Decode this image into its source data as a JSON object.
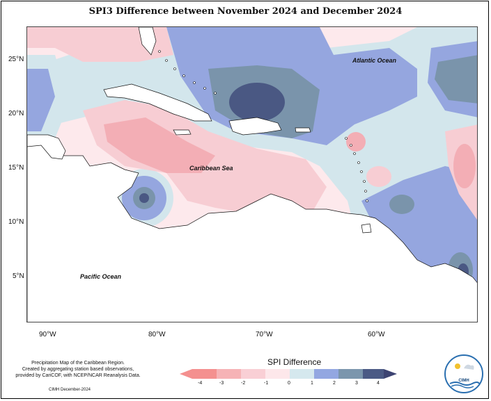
{
  "title": "SPI3 Difference between November 2024 and December 2024",
  "lat_labels": [
    "25°N",
    "20°N",
    "15°N",
    "10°N",
    "5°N"
  ],
  "lon_labels": [
    "90°W",
    "80°W",
    "70°W",
    "60°W"
  ],
  "ocean_labels": {
    "atlantic": "Atlantic Ocean",
    "caribbean": "Caribbean Sea",
    "pacific": "Pacific Ocean"
  },
  "credit_lines": [
    "Precipitation Map of the Caribbean Region.",
    "Created by aggregating station based observations,",
    "provided by CariCOF, with NCEP/NCAR Reanalysis Data."
  ],
  "credit_date": "CIMH December-2024",
  "legend": {
    "title": "SPI Difference",
    "ticks": [
      "-4",
      "-3",
      "-2",
      "-1",
      "0",
      "1",
      "2",
      "3",
      "4"
    ],
    "colors": [
      "#f4908f",
      "#f6b3b6",
      "#f9cfd5",
      "#fde7ea",
      "#d5e8ee",
      "#93a7e1",
      "#7b96ad",
      "#4b5a85"
    ]
  },
  "logo_text": "CIMH",
  "colors": {
    "land": "#ffffff",
    "pos1": "#cfe3ea",
    "pos2": "#95a6df",
    "pos3": "#7a94ab",
    "pos4": "#4a5883",
    "neg1": "#fde4e8",
    "neg2": "#f7cdd3",
    "neg3": "#f3aeb5"
  }
}
